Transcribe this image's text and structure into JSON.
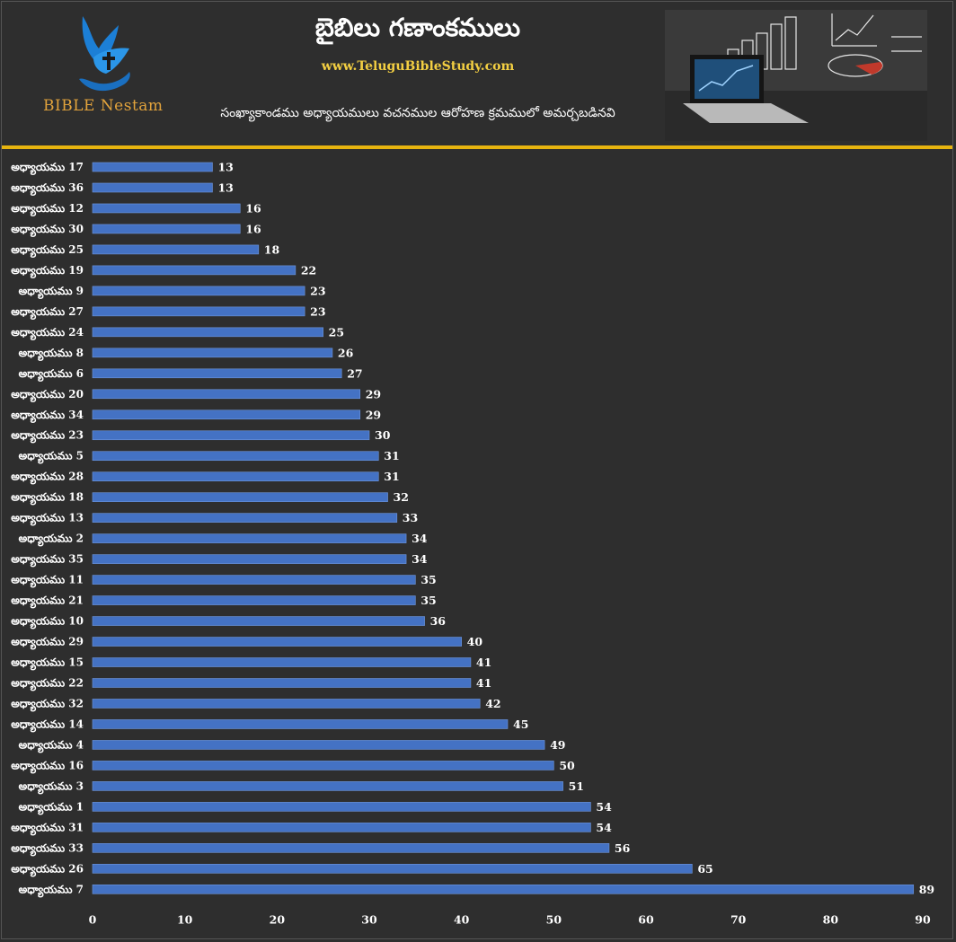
{
  "header": {
    "logo_text": "BIBLE Nestam",
    "title": "బైబిలు గణాంకములు",
    "website": "www.TeluguBibleStudy.com",
    "subtitle": "సంఖ్యాకాండము అధ్యాయములు వచనముల ఆరోహణ క్రమములో అమర్చబడినవి"
  },
  "icons": {
    "logo": "dove-cross-hand-icon",
    "banner": "laptop-charts-image"
  },
  "colors": {
    "background": "#2e2e2e",
    "bar": "#4472c4",
    "divider": "#e7b40f",
    "website": "#f3cf42",
    "logo_text": "#e2a33c"
  },
  "chart_data": {
    "type": "bar",
    "orientation": "horizontal",
    "title": "",
    "xlabel": "",
    "ylabel": "",
    "xlim": [
      0,
      90
    ],
    "xticks": [
      0,
      10,
      20,
      30,
      40,
      50,
      60,
      70,
      80,
      90
    ],
    "grid": false,
    "legend": "none",
    "categories": [
      "అధ్యాయము 17",
      "అధ్యాయము 36",
      "అధ్యాయము 12",
      "అధ్యాయము 30",
      "అధ్యాయము 25",
      "అధ్యాయము 19",
      "అధ్యాయము 9",
      "అధ్యాయము 27",
      "అధ్యాయము 24",
      "అధ్యాయము 8",
      "అధ్యాయము 6",
      "అధ్యాయము 20",
      "అధ్యాయము 34",
      "అధ్యాయము 23",
      "అధ్యాయము 5",
      "అధ్యాయము 28",
      "అధ్యాయము 18",
      "అధ్యాయము 13",
      "అధ్యాయము 2",
      "అధ్యాయము 35",
      "అధ్యాయము 11",
      "అధ్యాయము 21",
      "అధ్యాయము 10",
      "అధ్యాయము 29",
      "అధ్యాయము 15",
      "అధ్యాయము 22",
      "అధ్యాయము 32",
      "అధ్యాయము 14",
      "అధ్యాయము 4",
      "అధ్యాయము 16",
      "అధ్యాయము 3",
      "అధ్యాయము 1",
      "అధ్యాయము 31",
      "అధ్యాయము 33",
      "అధ్యాయము 26",
      "అధ్యాయము 7"
    ],
    "values": [
      13,
      13,
      16,
      16,
      18,
      22,
      23,
      23,
      25,
      26,
      27,
      29,
      29,
      30,
      31,
      31,
      32,
      33,
      34,
      34,
      35,
      35,
      36,
      40,
      41,
      41,
      42,
      45,
      49,
      50,
      51,
      54,
      54,
      56,
      65,
      89
    ]
  }
}
